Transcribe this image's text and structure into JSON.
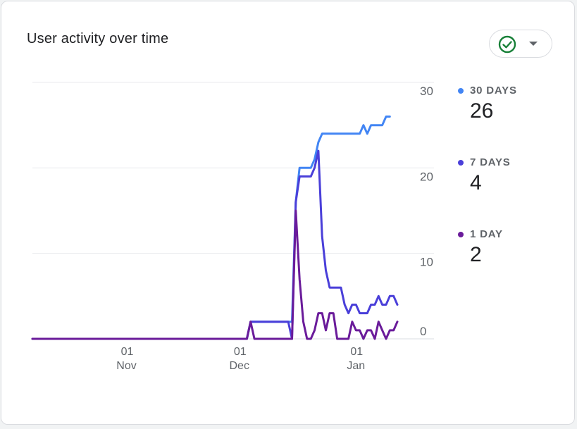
{
  "card": {
    "title": "User activity over time",
    "status_icon": "check-circle-icon",
    "dropdown_icon": "caret-down-icon"
  },
  "legend": [
    {
      "label": "30 DAYS",
      "value": "26",
      "color": "#4285f4"
    },
    {
      "label": "7 DAYS",
      "value": "4",
      "color": "#4a3fd9"
    },
    {
      "label": "1 DAY",
      "value": "2",
      "color": "#6a1b9a"
    }
  ],
  "chart_data": {
    "type": "line",
    "title": "User activity over time",
    "xlabel": "",
    "ylabel": "",
    "ylim": [
      0,
      30
    ],
    "yticks": [
      "0",
      "10",
      "20",
      "30"
    ],
    "xtick_labels": [
      {
        "day": "01",
        "month": "Nov",
        "date": "2023-11-01"
      },
      {
        "day": "01",
        "month": "Dec",
        "date": "2023-12-01"
      },
      {
        "day": "01",
        "month": "Jan",
        "date": "2024-01-01"
      }
    ],
    "x_start": "2023-10-07",
    "x_end": "2024-01-12",
    "grid": true,
    "legend_position": "right",
    "series": [
      {
        "name": "30 DAYS",
        "color": "#4285f4",
        "points": [
          [
            "2023-10-07",
            0
          ],
          [
            "2023-12-03",
            0
          ],
          [
            "2023-12-04",
            2
          ],
          [
            "2023-12-15",
            2
          ],
          [
            "2023-12-16",
            16
          ],
          [
            "2023-12-17",
            20
          ],
          [
            "2023-12-20",
            20
          ],
          [
            "2023-12-21",
            21
          ],
          [
            "2023-12-22",
            23
          ],
          [
            "2023-12-23",
            24
          ],
          [
            "2023-12-24",
            24
          ],
          [
            "2024-01-02",
            24
          ],
          [
            "2024-01-03",
            25
          ],
          [
            "2024-01-04",
            24
          ],
          [
            "2024-01-05",
            25
          ],
          [
            "2024-01-08",
            25
          ],
          [
            "2024-01-09",
            26
          ],
          [
            "2024-01-10",
            26
          ]
        ]
      },
      {
        "name": "7 DAYS",
        "color": "#4a3fd9",
        "points": [
          [
            "2023-10-07",
            0
          ],
          [
            "2023-12-03",
            0
          ],
          [
            "2023-12-04",
            2
          ],
          [
            "2023-12-14",
            2
          ],
          [
            "2023-12-15",
            0
          ],
          [
            "2023-12-16",
            16
          ],
          [
            "2023-12-17",
            19
          ],
          [
            "2023-12-20",
            19
          ],
          [
            "2023-12-21",
            20
          ],
          [
            "2023-12-22",
            22
          ],
          [
            "2023-12-23",
            12
          ],
          [
            "2023-12-24",
            8
          ],
          [
            "2023-12-25",
            6
          ],
          [
            "2023-12-28",
            6
          ],
          [
            "2023-12-29",
            4
          ],
          [
            "2023-12-30",
            3
          ],
          [
            "2023-12-31",
            4
          ],
          [
            "2024-01-01",
            4
          ],
          [
            "2024-01-02",
            3
          ],
          [
            "2024-01-04",
            3
          ],
          [
            "2024-01-05",
            4
          ],
          [
            "2024-01-06",
            4
          ],
          [
            "2024-01-07",
            5
          ],
          [
            "2024-01-08",
            4
          ],
          [
            "2024-01-09",
            4
          ],
          [
            "2024-01-10",
            5
          ],
          [
            "2024-01-11",
            5
          ],
          [
            "2024-01-12",
            4
          ]
        ]
      },
      {
        "name": "1 DAY",
        "color": "#6a1b9a",
        "points": [
          [
            "2023-10-07",
            0
          ],
          [
            "2023-12-03",
            0
          ],
          [
            "2023-12-04",
            2
          ],
          [
            "2023-12-05",
            0
          ],
          [
            "2023-12-15",
            0
          ],
          [
            "2023-12-16",
            15
          ],
          [
            "2023-12-17",
            7
          ],
          [
            "2023-12-18",
            2
          ],
          [
            "2023-12-19",
            0
          ],
          [
            "2023-12-20",
            0
          ],
          [
            "2023-12-21",
            1
          ],
          [
            "2023-12-22",
            3
          ],
          [
            "2023-12-23",
            3
          ],
          [
            "2023-12-24",
            1
          ],
          [
            "2023-12-25",
            3
          ],
          [
            "2023-12-26",
            3
          ],
          [
            "2023-12-27",
            0
          ],
          [
            "2023-12-30",
            0
          ],
          [
            "2023-12-31",
            2
          ],
          [
            "2024-01-01",
            1
          ],
          [
            "2024-01-02",
            1
          ],
          [
            "2024-01-03",
            0
          ],
          [
            "2024-01-04",
            1
          ],
          [
            "2024-01-05",
            1
          ],
          [
            "2024-01-06",
            0
          ],
          [
            "2024-01-07",
            2
          ],
          [
            "2024-01-08",
            1
          ],
          [
            "2024-01-09",
            0
          ],
          [
            "2024-01-10",
            1
          ],
          [
            "2024-01-11",
            1
          ],
          [
            "2024-01-12",
            2
          ]
        ]
      }
    ]
  }
}
